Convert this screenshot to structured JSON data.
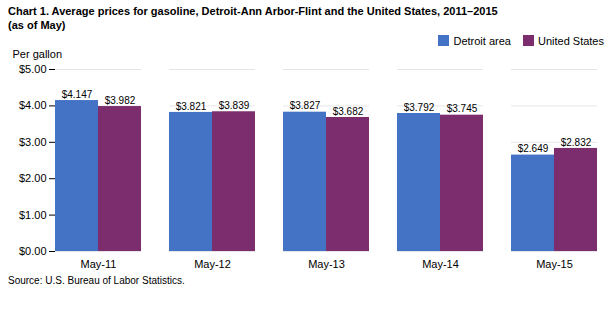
{
  "chart_data": {
    "type": "bar",
    "title": "Chart 1. Average prices for gasoline, Detroit-Ann Arbor-Flint and the United States, 2011–2015",
    "subtitle": "(as of May)",
    "ylabel": "Per gallon",
    "source": "Source: U.S. Bureau of Labor Statistics.",
    "categories": [
      "May-11",
      "May-12",
      "May-13",
      "May-14",
      "May-15"
    ],
    "series": [
      {
        "name": "Detroit area",
        "color": "#4472C4",
        "values": [
          4.147,
          3.821,
          3.827,
          3.792,
          2.649
        ],
        "value_labels": [
          "$4.147",
          "$3.821",
          "$3.827",
          "$3.792",
          "$2.649"
        ]
      },
      {
        "name": "United States",
        "color": "#7B2D6E",
        "values": [
          3.982,
          3.839,
          3.682,
          3.745,
          2.832
        ],
        "value_labels": [
          "$3.982",
          "$3.839",
          "$3.682",
          "$3.745",
          "$2.832"
        ]
      }
    ],
    "ylim": [
      0,
      5.0
    ],
    "yticks": [
      {
        "value": 0.0,
        "label": "$0.00"
      },
      {
        "value": 1.0,
        "label": "$1.00"
      },
      {
        "value": 2.0,
        "label": "$2.00"
      },
      {
        "value": 3.0,
        "label": "$3.00"
      },
      {
        "value": 4.0,
        "label": "$4.00"
      },
      {
        "value": 5.0,
        "label": "$5.00"
      }
    ],
    "grid": true,
    "legend": "upper right",
    "data_labels": true
  }
}
